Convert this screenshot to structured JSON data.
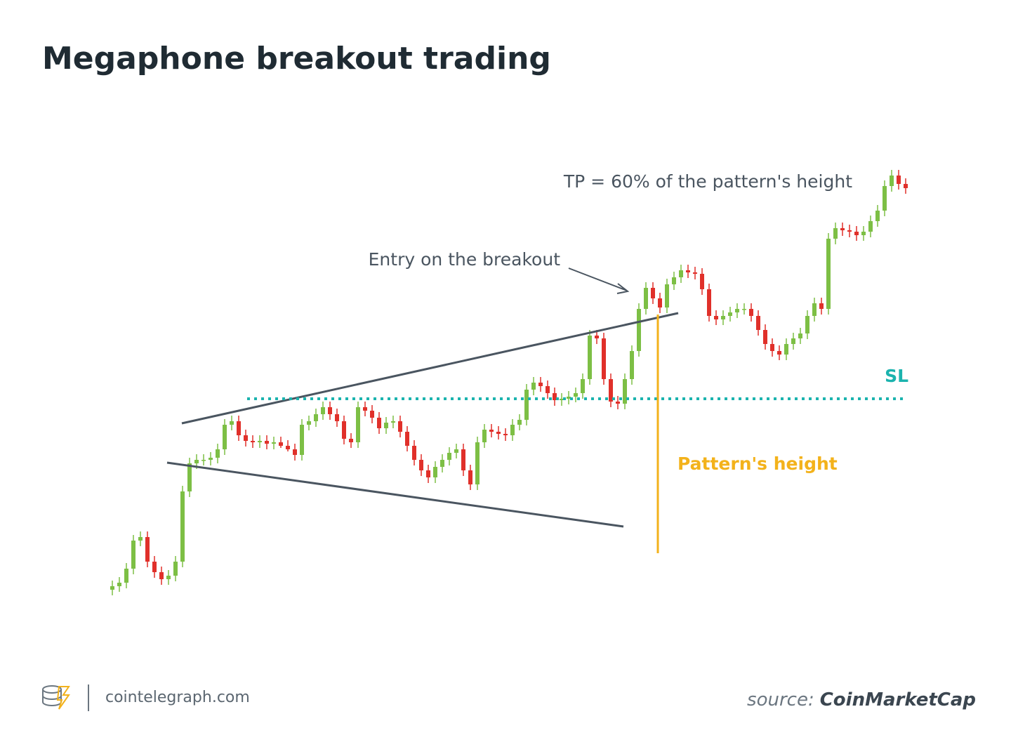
{
  "chart_data": {
    "type": "candlestick",
    "title": "Megaphone breakout trading",
    "annotations": {
      "tp": "TP = 60% of the pattern's height",
      "entry": "Entry on the breakout",
      "sl": "SL",
      "height": "Pattern's height"
    },
    "footer": {
      "site": "cointelegraph.com",
      "source_prefix": "source:",
      "source": "CoinMarketCap"
    },
    "up_color": "#7dbf45",
    "down_color": "#e0302a",
    "ylim": [
      0,
      700
    ],
    "open": [
      60,
      65,
      70,
      90,
      130,
      135,
      100,
      85,
      75,
      80,
      100,
      200,
      240,
      245,
      245,
      248,
      260,
      295,
      300,
      280,
      272,
      270,
      272,
      268,
      270,
      265,
      260,
      252,
      295,
      300,
      310,
      320,
      310,
      300,
      275,
      270,
      320,
      315,
      305,
      290,
      298,
      300,
      285,
      265,
      245,
      230,
      220,
      235,
      245,
      255,
      260,
      230,
      210,
      270,
      288,
      285,
      282,
      280,
      295,
      302,
      345,
      355,
      350,
      340,
      330,
      332,
      335,
      340,
      360,
      422,
      418,
      360,
      328,
      325,
      360,
      400,
      460,
      490,
      475,
      462,
      495,
      505,
      515,
      512,
      510,
      488,
      450,
      445,
      450,
      455,
      460,
      460,
      450,
      430,
      410,
      400,
      395,
      410,
      418,
      425,
      450,
      468,
      460,
      560,
      575,
      572,
      570,
      565,
      570,
      585,
      600,
      635,
      650,
      638
    ],
    "high": [
      73,
      78,
      98,
      138,
      143,
      143,
      108,
      93,
      88,
      108,
      208,
      248,
      253,
      253,
      256,
      268,
      303,
      308,
      308,
      288,
      280,
      280,
      280,
      278,
      278,
      273,
      268,
      303,
      308,
      318,
      328,
      328,
      318,
      308,
      283,
      328,
      328,
      323,
      313,
      306,
      308,
      308,
      293,
      273,
      253,
      238,
      243,
      253,
      263,
      268,
      268,
      238,
      278,
      296,
      296,
      293,
      290,
      303,
      310,
      353,
      363,
      363,
      358,
      348,
      340,
      343,
      348,
      368,
      430,
      430,
      426,
      368,
      336,
      368,
      408,
      468,
      498,
      498,
      483,
      503,
      513,
      523,
      523,
      520,
      518,
      496,
      458,
      458,
      463,
      468,
      468,
      468,
      458,
      438,
      418,
      408,
      418,
      426,
      433,
      458,
      476,
      476,
      568,
      583,
      583,
      580,
      578,
      578,
      593,
      608,
      643,
      658,
      658,
      646
    ],
    "low": [
      52,
      57,
      62,
      82,
      122,
      92,
      77,
      67,
      67,
      72,
      92,
      192,
      232,
      237,
      237,
      240,
      252,
      287,
      272,
      264,
      262,
      262,
      260,
      260,
      262,
      257,
      244,
      244,
      287,
      292,
      302,
      302,
      292,
      267,
      262,
      262,
      307,
      297,
      282,
      282,
      290,
      277,
      257,
      237,
      222,
      212,
      212,
      227,
      237,
      247,
      222,
      202,
      202,
      262,
      277,
      274,
      272,
      272,
      287,
      294,
      337,
      342,
      332,
      322,
      322,
      324,
      327,
      332,
      352,
      410,
      352,
      320,
      317,
      317,
      352,
      392,
      452,
      467,
      454,
      454,
      487,
      497,
      504,
      502,
      480,
      442,
      437,
      437,
      442,
      447,
      452,
      442,
      422,
      402,
      392,
      387,
      387,
      402,
      410,
      417,
      442,
      452,
      452,
      552,
      564,
      562,
      557,
      557,
      562,
      577,
      592,
      627,
      630,
      624
    ],
    "close": [
      65,
      70,
      90,
      130,
      135,
      100,
      85,
      75,
      80,
      100,
      200,
      240,
      245,
      245,
      248,
      260,
      295,
      300,
      280,
      272,
      270,
      272,
      268,
      270,
      265,
      260,
      252,
      295,
      300,
      310,
      320,
      310,
      300,
      275,
      270,
      320,
      315,
      305,
      290,
      298,
      300,
      285,
      265,
      245,
      230,
      220,
      235,
      245,
      255,
      260,
      230,
      210,
      270,
      288,
      285,
      282,
      280,
      295,
      302,
      345,
      355,
      350,
      340,
      330,
      332,
      335,
      340,
      360,
      422,
      418,
      360,
      328,
      325,
      360,
      400,
      460,
      490,
      475,
      462,
      495,
      505,
      515,
      512,
      510,
      488,
      450,
      445,
      450,
      455,
      460,
      460,
      450,
      430,
      410,
      400,
      395,
      410,
      418,
      425,
      450,
      468,
      460,
      560,
      575,
      572,
      570,
      565,
      570,
      585,
      600,
      635,
      650,
      638,
      632
    ]
  }
}
